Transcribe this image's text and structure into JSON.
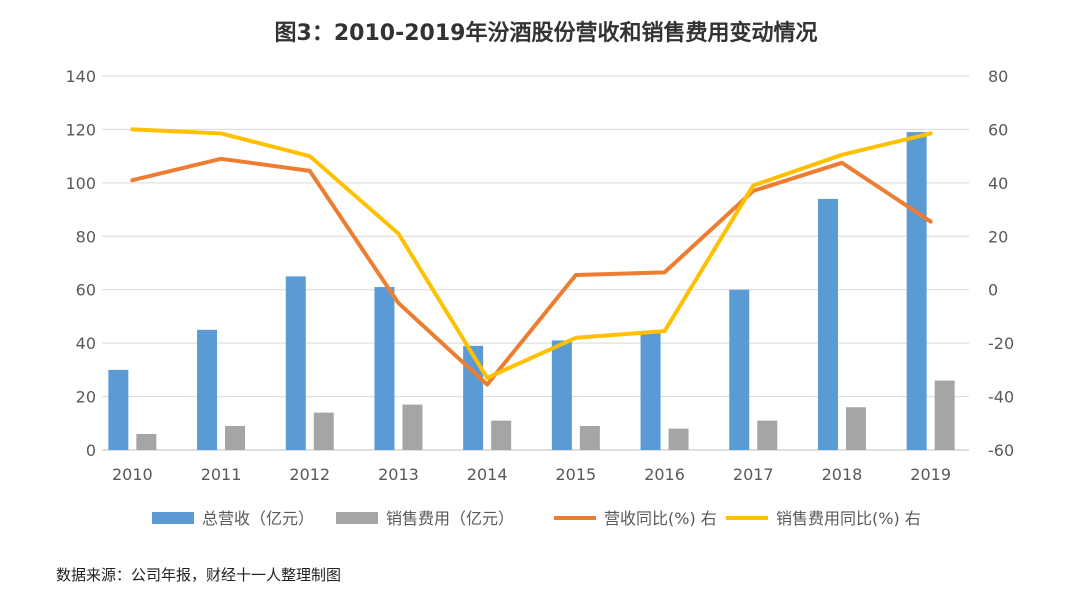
{
  "chart_data": {
    "type": "bar",
    "title": "图3：2010-2019年汾酒股份营收和销售费用变动情况",
    "categories": [
      "2010",
      "2011",
      "2012",
      "2013",
      "2014",
      "2015",
      "2016",
      "2017",
      "2018",
      "2019"
    ],
    "series": [
      {
        "name": "总营收（亿元）",
        "kind": "bar",
        "axis": "left",
        "color": "#5B9BD5",
        "values": [
          30,
          45,
          65,
          61,
          39,
          41,
          44,
          60,
          94,
          119
        ]
      },
      {
        "name": "销售费用（亿元）",
        "kind": "bar",
        "axis": "left",
        "color": "#A5A5A5",
        "values": [
          6,
          9,
          14,
          17,
          11,
          9,
          8,
          11,
          16,
          26
        ]
      },
      {
        "name": "营收同比(%) 右",
        "kind": "line",
        "axis": "right",
        "color": "#ED7D31",
        "values": [
          41,
          49,
          44.5,
          -5,
          -35.5,
          5.5,
          6.5,
          37,
          47.5,
          25.5
        ]
      },
      {
        "name": "销售费用同比(%) 右",
        "kind": "line",
        "axis": "right",
        "color": "#FFC000",
        "values": [
          60,
          58.5,
          50,
          21,
          -33,
          -18,
          -15.5,
          39,
          50.5,
          58.5
        ]
      }
    ],
    "ylim_left": [
      0,
      140
    ],
    "ylim_right": [
      -60,
      80
    ],
    "yticks_left": [
      "0",
      "20",
      "40",
      "60",
      "80",
      "100",
      "120",
      "140"
    ],
    "yticks_right": [
      "-60",
      "-40",
      "-20",
      "0",
      "20",
      "40",
      "60",
      "80"
    ],
    "grid": true,
    "legend_position": "bottom",
    "source_note": "数据来源：公司年报，财经十一人整理制图"
  }
}
